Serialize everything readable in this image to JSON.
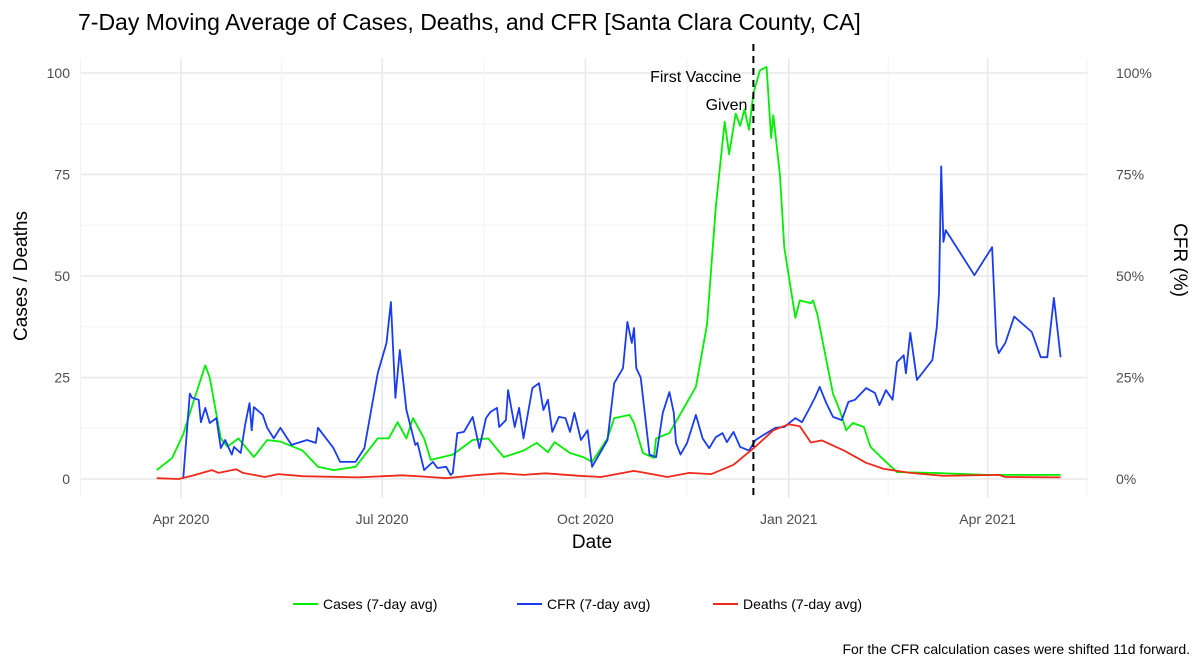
{
  "chart_data": {
    "type": "line",
    "title": "7-Day Moving Average of Cases, Deaths, and CFR [Santa Clara County, CA]",
    "xlabel": "Date",
    "ylabel": "Cases / Deaths",
    "ylabel_right": "CFR (%)",
    "x_origin": "2020-04-01",
    "x_unit": "days since x_origin",
    "xlim": [
      -45,
      412
    ],
    "ylim": [
      0,
      100
    ],
    "ylim_right": [
      0,
      100
    ],
    "x_ticks": [
      {
        "day": 0,
        "label": "Apr 2020"
      },
      {
        "day": 91,
        "label": "Jul 2020"
      },
      {
        "day": 183,
        "label": "Oct 2020"
      },
      {
        "day": 275,
        "label": "Jan 2021"
      },
      {
        "day": 365,
        "label": "Apr 2021"
      }
    ],
    "y_ticks": [
      {
        "value": 0,
        "label": "0"
      },
      {
        "value": 25,
        "label": "25"
      },
      {
        "value": 50,
        "label": "50"
      },
      {
        "value": 75,
        "label": "75"
      },
      {
        "value": 100,
        "label": "100"
      }
    ],
    "y_ticks_right": [
      {
        "value": 0,
        "label": "0%"
      },
      {
        "value": 25,
        "label": "25%"
      },
      {
        "value": 50,
        "label": "50%"
      },
      {
        "value": 75,
        "label": "75%"
      },
      {
        "value": 100,
        "label": "100%"
      }
    ],
    "grid": true,
    "annotation": {
      "day": 259,
      "line1": "First Vaccine",
      "line2": "Given",
      "style": "dashed vertical line"
    },
    "legend_position": "bottom",
    "caption": "For the CFR calculation cases were shifted 11d forward.",
    "series": [
      {
        "name": "Cases (7-day avg)",
        "color": "#00ee00",
        "points": [
          [
            -11,
            2.2
          ],
          [
            -4,
            5.2
          ],
          [
            1,
            11
          ],
          [
            5,
            18
          ],
          [
            11,
            28
          ],
          [
            13,
            25
          ],
          [
            18,
            10
          ],
          [
            21,
            8
          ],
          [
            26,
            10
          ],
          [
            33,
            5.4
          ],
          [
            39,
            9.6
          ],
          [
            45,
            9.2
          ],
          [
            55,
            7
          ],
          [
            62,
            3
          ],
          [
            69,
            2.2
          ],
          [
            79,
            3
          ],
          [
            89,
            10
          ],
          [
            94,
            10
          ],
          [
            98,
            14
          ],
          [
            102,
            10
          ],
          [
            105,
            15
          ],
          [
            110,
            10
          ],
          [
            113,
            4.7
          ],
          [
            123,
            6
          ],
          [
            132,
            9.6
          ],
          [
            139,
            10
          ],
          [
            146,
            5.4
          ],
          [
            155,
            7
          ],
          [
            161,
            8.9
          ],
          [
            166,
            6.6
          ],
          [
            169,
            9.1
          ],
          [
            176,
            6.4
          ],
          [
            182,
            5.4
          ],
          [
            186,
            4.2
          ],
          [
            193,
            10
          ],
          [
            196,
            15
          ],
          [
            203,
            15.8
          ],
          [
            205,
            13.8
          ],
          [
            209,
            6.4
          ],
          [
            214,
            5.2
          ],
          [
            215,
            10
          ],
          [
            221,
            11.3
          ],
          [
            227,
            17
          ],
          [
            233,
            22.7
          ],
          [
            238,
            38
          ],
          [
            242,
            67
          ],
          [
            246,
            88
          ],
          [
            248,
            80
          ],
          [
            251,
            90
          ],
          [
            253,
            87
          ],
          [
            255,
            91
          ],
          [
            257,
            86
          ],
          [
            259,
            95
          ],
          [
            262,
            100.7
          ],
          [
            265,
            101.5
          ],
          [
            267,
            84
          ],
          [
            268,
            89.6
          ],
          [
            271,
            75
          ],
          [
            273,
            57
          ],
          [
            276,
            46.5
          ],
          [
            278,
            39.7
          ],
          [
            280,
            44
          ],
          [
            285,
            43.3
          ],
          [
            286,
            44
          ],
          [
            288,
            40.4
          ],
          [
            292,
            29.3
          ],
          [
            295,
            21
          ],
          [
            298,
            17
          ],
          [
            301,
            12
          ],
          [
            304,
            13.8
          ],
          [
            309,
            12.8
          ],
          [
            312,
            7.9
          ],
          [
            318,
            4.7
          ],
          [
            324,
            1.7
          ],
          [
            340,
            1.5
          ],
          [
            365,
            1.0
          ],
          [
            398,
            1.0
          ]
        ]
      },
      {
        "name": "CFR (7-day avg)",
        "color": "#1a3cf0",
        "points": [
          [
            1,
            0
          ],
          [
            4,
            21
          ],
          [
            5,
            20
          ],
          [
            8,
            19.5
          ],
          [
            9,
            14
          ],
          [
            11,
            17.5
          ],
          [
            13,
            13.8
          ],
          [
            16,
            15
          ],
          [
            18,
            7.6
          ],
          [
            20,
            9.6
          ],
          [
            23,
            6
          ],
          [
            24,
            7.9
          ],
          [
            27,
            6.4
          ],
          [
            29,
            13.3
          ],
          [
            31,
            18.7
          ],
          [
            32,
            12
          ],
          [
            33,
            17.7
          ],
          [
            37,
            15.8
          ],
          [
            39,
            12.6
          ],
          [
            42,
            10
          ],
          [
            45,
            12.6
          ],
          [
            50,
            8.4
          ],
          [
            57,
            9.6
          ],
          [
            61,
            8.9
          ],
          [
            62,
            12.6
          ],
          [
            69,
            7.6
          ],
          [
            72,
            4.2
          ],
          [
            79,
            4.2
          ],
          [
            83,
            7.6
          ],
          [
            89,
            26
          ],
          [
            93,
            33.5
          ],
          [
            95,
            43.6
          ],
          [
            97,
            20
          ],
          [
            99,
            31.8
          ],
          [
            102,
            17
          ],
          [
            106,
            8.4
          ],
          [
            107,
            8.9
          ],
          [
            110,
            2.2
          ],
          [
            114,
            4.2
          ],
          [
            116,
            2.7
          ],
          [
            120,
            3
          ],
          [
            122,
            1
          ],
          [
            123,
            1.5
          ],
          [
            125,
            11.3
          ],
          [
            128,
            11.6
          ],
          [
            132,
            15.3
          ],
          [
            135,
            7.6
          ],
          [
            138,
            15
          ],
          [
            140,
            16.5
          ],
          [
            143,
            17.5
          ],
          [
            144,
            12.8
          ],
          [
            147,
            14.5
          ],
          [
            148,
            21.9
          ],
          [
            151,
            12.8
          ],
          [
            153,
            17.5
          ],
          [
            155,
            10
          ],
          [
            159,
            22.4
          ],
          [
            162,
            23.6
          ],
          [
            164,
            17
          ],
          [
            166,
            19.5
          ],
          [
            168,
            11.6
          ],
          [
            171,
            15.3
          ],
          [
            174,
            15
          ],
          [
            176,
            11.6
          ],
          [
            178,
            16.3
          ],
          [
            181,
            9.6
          ],
          [
            184,
            12
          ],
          [
            186,
            3
          ],
          [
            193,
            9.6
          ],
          [
            196,
            23.6
          ],
          [
            200,
            27.3
          ],
          [
            202,
            38.7
          ],
          [
            204,
            33.5
          ],
          [
            205,
            37.2
          ],
          [
            206,
            27.3
          ],
          [
            208,
            25
          ],
          [
            212,
            6
          ],
          [
            215,
            5.4
          ],
          [
            218,
            16.3
          ],
          [
            221,
            21.4
          ],
          [
            223,
            16.3
          ],
          [
            224,
            8.9
          ],
          [
            226,
            6
          ],
          [
            229,
            8.9
          ],
          [
            233,
            15.8
          ],
          [
            236,
            10
          ],
          [
            239,
            7.6
          ],
          [
            242,
            10.3
          ],
          [
            245,
            11.3
          ],
          [
            247,
            9.1
          ],
          [
            250,
            11.6
          ],
          [
            253,
            7.9
          ],
          [
            257,
            7
          ],
          [
            260,
            9.6
          ],
          [
            265,
            11.3
          ],
          [
            269,
            12.6
          ],
          [
            273,
            12.8
          ],
          [
            278,
            15
          ],
          [
            281,
            14
          ],
          [
            284,
            17
          ],
          [
            287,
            20.2
          ],
          [
            289,
            22.7
          ],
          [
            292,
            18.7
          ],
          [
            295,
            15.3
          ],
          [
            299,
            14.5
          ],
          [
            302,
            19
          ],
          [
            305,
            19.5
          ],
          [
            310,
            22.4
          ],
          [
            314,
            21.2
          ],
          [
            316,
            18.2
          ],
          [
            319,
            21.9
          ],
          [
            322,
            19.5
          ],
          [
            324,
            28.8
          ],
          [
            327,
            30.5
          ],
          [
            328,
            26
          ],
          [
            330,
            36
          ],
          [
            333,
            24.4
          ],
          [
            340,
            29.3
          ],
          [
            342,
            37.4
          ],
          [
            343,
            45.8
          ],
          [
            344,
            77
          ],
          [
            345,
            58.4
          ],
          [
            346,
            61.3
          ],
          [
            359,
            50.2
          ],
          [
            367,
            57.1
          ],
          [
            369,
            33
          ],
          [
            370,
            31
          ],
          [
            373,
            33.5
          ],
          [
            377,
            40
          ],
          [
            385,
            36.2
          ],
          [
            389,
            30
          ],
          [
            392,
            30
          ],
          [
            395,
            44.6
          ],
          [
            398,
            30
          ]
        ]
      },
      {
        "name": "Deaths (7-day avg)",
        "color": "#ee2a1a",
        "points": [
          [
            -11,
            0.2
          ],
          [
            -1,
            0
          ],
          [
            5,
            0.8
          ],
          [
            14,
            2.2
          ],
          [
            17,
            1.5
          ],
          [
            25,
            2.4
          ],
          [
            28,
            1.5
          ],
          [
            38,
            0.5
          ],
          [
            44,
            1.2
          ],
          [
            55,
            0.7
          ],
          [
            80,
            0.4
          ],
          [
            100,
            0.9
          ],
          [
            110,
            0.6
          ],
          [
            120,
            0.2
          ],
          [
            135,
            1
          ],
          [
            145,
            1.4
          ],
          [
            155,
            1
          ],
          [
            165,
            1.4
          ],
          [
            180,
            0.8
          ],
          [
            190,
            0.5
          ],
          [
            200,
            1.5
          ],
          [
            205,
            2
          ],
          [
            215,
            1
          ],
          [
            220,
            0.5
          ],
          [
            230,
            1.5
          ],
          [
            240,
            1.2
          ],
          [
            250,
            3.5
          ],
          [
            260,
            8
          ],
          [
            268,
            12
          ],
          [
            275,
            13.5
          ],
          [
            280,
            13
          ],
          [
            285,
            9
          ],
          [
            290,
            9.5
          ],
          [
            300,
            7
          ],
          [
            310,
            4
          ],
          [
            318,
            2.5
          ],
          [
            330,
            1.5
          ],
          [
            345,
            0.8
          ],
          [
            370,
            1
          ],
          [
            373,
            0.5
          ],
          [
            398,
            0.4
          ]
        ]
      }
    ]
  }
}
